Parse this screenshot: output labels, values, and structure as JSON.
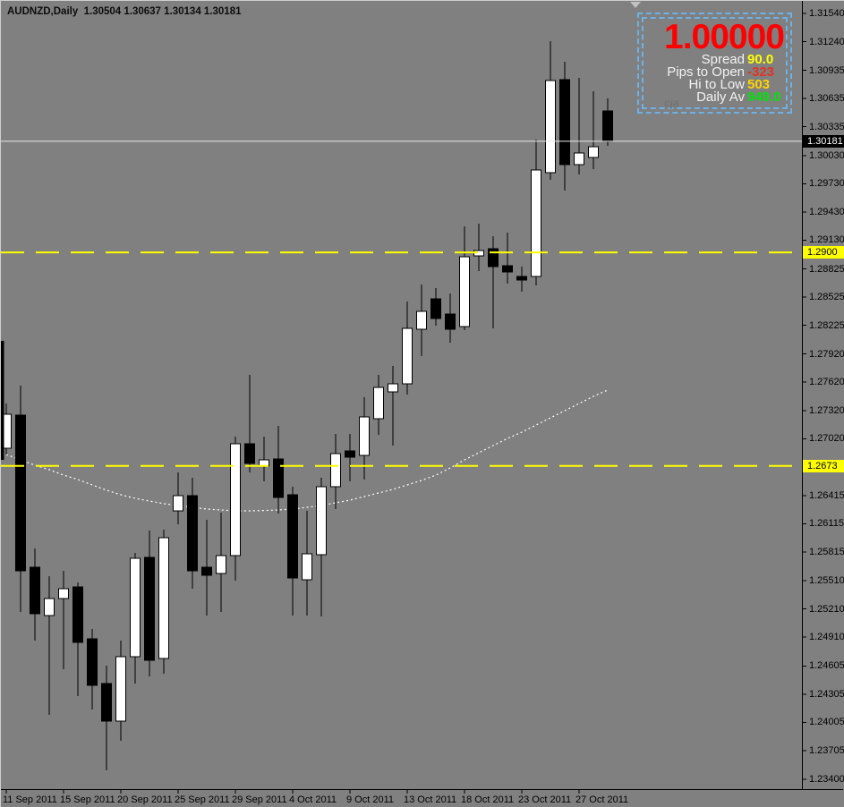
{
  "header": {
    "symbol_line": "AUDNZD,Daily  1.30504 1.30637 1.30134 1.30181"
  },
  "info_panel": {
    "big_value": "1.00000",
    "big_value_color": "#ff0000",
    "border_color": "#6cb2e8",
    "watermark": "cja",
    "rows": [
      {
        "label": "Spread",
        "value": "90.0",
        "value_color": "#ffff00"
      },
      {
        "label": "Pips to Open",
        "value": "-323",
        "value_color": "#e23320"
      },
      {
        "label": "Hi to Low",
        "value": "503",
        "value_color": "#ffd400"
      },
      {
        "label": "Daily Av",
        "value": "949.0",
        "value_color": "#00e30a"
      }
    ]
  },
  "axis": {
    "price_labels": [
      "1.31540",
      "1.31240",
      "1.30935",
      "1.30635",
      "1.30335",
      "1.30030",
      "1.29730",
      "1.29430",
      "1.29130",
      "1.28825",
      "1.28525",
      "1.28225",
      "1.27920",
      "1.27620",
      "1.27320",
      "1.27020",
      "1.26415",
      "1.26115",
      "1.25815",
      "1.25510",
      "1.25210",
      "1.24910",
      "1.24605",
      "1.24305",
      "1.24005",
      "1.23705",
      "1.23400"
    ],
    "date_labels": [
      {
        "bar": 0,
        "text": "11 Sep 2011"
      },
      {
        "bar": 4,
        "text": "15 Sep 2011"
      },
      {
        "bar": 8,
        "text": "20 Sep 2011"
      },
      {
        "bar": 12,
        "text": "25 Sep 2011"
      },
      {
        "bar": 16,
        "text": "29 Sep 2011"
      },
      {
        "bar": 20,
        "text": "4 Oct 2011"
      },
      {
        "bar": 24,
        "text": "9 Oct 2011"
      },
      {
        "bar": 28,
        "text": "13 Oct 2011"
      },
      {
        "bar": 32,
        "text": "18 Oct 2011"
      },
      {
        "bar": 36,
        "text": "23 Oct 2011"
      },
      {
        "bar": 40,
        "text": "27 Oct 2011"
      }
    ],
    "price_tags": {
      "current": {
        "text": "1.30181",
        "bg": "#000000",
        "fg": "#ffffff"
      },
      "levels": [
        {
          "text": "1.2900",
          "price": 1.29,
          "bg": "#ffff00",
          "fg": "#000000"
        },
        {
          "text": "1.2673",
          "price": 1.2673,
          "bg": "#ffff00",
          "fg": "#000000"
        }
      ]
    }
  },
  "chart_data": {
    "type": "candlestick",
    "symbol": "AUDNZD",
    "timeframe": "Daily",
    "title": "AUDNZD,Daily  1.30504 1.30637 1.30134 1.30181",
    "ylim": [
      1.234,
      1.3154
    ],
    "current_price": 1.30181,
    "bid_line_color": "#e8e8e8",
    "level_line_color": "#ffff00",
    "ma_color": "#ffffff",
    "bull_color": "#ffffff",
    "bear_color": "#000000",
    "candles_format": "[open, high, low, close]",
    "partial_first_candle": {
      "open": 1.2806,
      "close": 1.26795
    },
    "candles": [
      [
        1.26918,
        1.27394,
        1.26852,
        1.2728
      ],
      [
        1.2727,
        1.27584,
        1.25178,
        1.25616
      ],
      [
        1.25654,
        1.25853,
        1.24874,
        1.25159
      ],
      [
        1.2514,
        1.25559,
        1.24085,
        1.25321
      ],
      [
        1.25321,
        1.25616,
        1.2457,
        1.25426
      ],
      [
        1.25445,
        1.25493,
        1.24285,
        1.24855
      ],
      [
        1.24893,
        1.24998,
        1.24142,
        1.24399
      ],
      [
        1.24418,
        1.24608,
        1.23495,
        1.24018
      ],
      [
        1.24018,
        1.24874,
        1.23809,
        1.24703
      ],
      [
        1.24703,
        1.25806,
        1.24418,
        1.25749
      ],
      [
        1.25758,
        1.26044,
        1.24494,
        1.24665
      ],
      [
        1.24684,
        1.26053,
        1.24522,
        1.25968
      ],
      [
        1.26252,
        1.26661,
        1.26109,
        1.26413
      ],
      [
        1.26413,
        1.26604,
        1.25426,
        1.25616
      ],
      [
        1.25654,
        1.26157,
        1.2514,
        1.25568
      ],
      [
        1.25587,
        1.26233,
        1.25178,
        1.25777
      ],
      [
        1.25777,
        1.27041,
        1.25512,
        1.26965
      ],
      [
        1.26965,
        1.27698,
        1.26661,
        1.26756
      ],
      [
        1.26727,
        1.27041,
        1.26566,
        1.26794
      ],
      [
        1.26803,
        1.27155,
        1.26223,
        1.26394
      ],
      [
        1.26423,
        1.26509,
        1.2514,
        1.2554
      ],
      [
        1.25521,
        1.26252,
        1.2514,
        1.25796
      ],
      [
        1.25787,
        1.26604,
        1.25131,
        1.26509
      ],
      [
        1.26509,
        1.2707,
        1.26271,
        1.2686
      ],
      [
        1.26889,
        1.2707,
        1.26566,
        1.26822
      ],
      [
        1.26841,
        1.2746,
        1.26585,
        1.27251
      ],
      [
        1.27232,
        1.27698,
        1.27061,
        1.27565
      ],
      [
        1.27517,
        1.27793,
        1.26946,
        1.27603
      ],
      [
        1.27603,
        1.28478,
        1.27489,
        1.28193
      ],
      [
        1.28183,
        1.28659,
        1.27898,
        1.28373
      ],
      [
        1.28507,
        1.28621,
        1.28221,
        1.28297
      ],
      [
        1.28345,
        1.28564,
        1.28041,
        1.28183
      ],
      [
        1.28212,
        1.29277,
        1.28174,
        1.28953
      ],
      [
        1.28963,
        1.29305,
        1.28801,
        1.2902
      ],
      [
        1.29039,
        1.29172,
        1.28193,
        1.28849
      ],
      [
        1.28858,
        1.2921,
        1.28668,
        1.28792
      ],
      [
        1.28744,
        1.28849,
        1.28583,
        1.28706
      ],
      [
        1.28744,
        1.30199,
        1.28649,
        1.29876
      ],
      [
        1.29847,
        1.31245,
        1.29771,
        1.30827
      ],
      [
        1.30836,
        1.31026,
        1.29657,
        1.29933
      ],
      [
        1.29933,
        1.30855,
        1.29828,
        1.30057
      ],
      [
        1.30009,
        1.30713,
        1.29885,
        1.30123
      ],
      [
        1.30504,
        1.30637,
        1.30134,
        1.30181
      ]
    ],
    "ma": [
      1.26852,
      1.26795,
      1.26738,
      1.2669,
      1.26633,
      1.26586,
      1.26529,
      1.26472,
      1.26424,
      1.26386,
      1.26357,
      1.26329,
      1.2631,
      1.26291,
      1.26272,
      1.26262,
      1.26253,
      1.26253,
      1.26257,
      1.26262,
      1.26272,
      1.26291,
      1.2631,
      1.26338,
      1.26367,
      1.26405,
      1.26443,
      1.26481,
      1.26529,
      1.26576,
      1.26633,
      1.26709,
      1.26795,
      1.26871,
      1.26947,
      1.27023,
      1.2709,
      1.27166,
      1.27242,
      1.27318,
      1.27394,
      1.2747,
      1.27537
    ]
  }
}
